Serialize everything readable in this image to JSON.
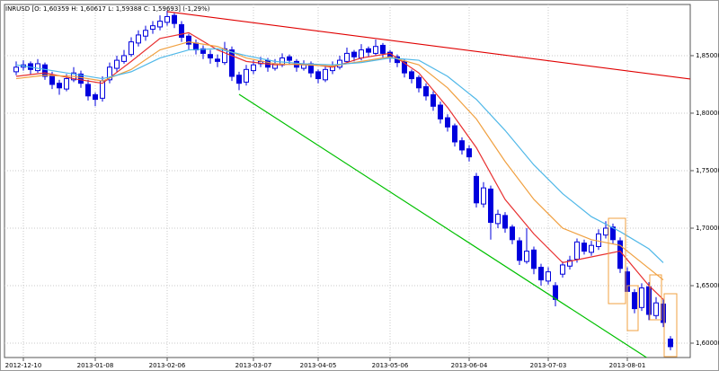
{
  "chart_data": {
    "type": "candlestick",
    "title": "INRUSD [O: 1,60359  H: 1,60617  L: 1,59388  C: 1,59693] (-1,29%)",
    "categories": [
      null,
      "2012-12-10",
      null,
      null,
      null,
      null,
      null,
      null,
      null,
      null,
      null,
      "2013-01-08",
      null,
      null,
      null,
      null,
      null,
      null,
      null,
      null,
      null,
      "2013-02-06",
      null,
      null,
      null,
      null,
      null,
      null,
      null,
      null,
      null,
      null,
      null,
      "2013-03-07",
      null,
      null,
      null,
      null,
      null,
      null,
      null,
      null,
      "2013-04-05",
      null,
      null,
      null,
      null,
      null,
      null,
      null,
      null,
      null,
      "2013-05-06",
      null,
      null,
      null,
      null,
      null,
      null,
      null,
      null,
      null,
      null,
      "2013-06-04",
      null,
      null,
      null,
      null,
      null,
      null,
      null,
      null,
      null,
      null,
      "2013-07-03",
      null,
      null,
      null,
      null,
      null,
      null,
      null,
      null,
      null,
      null,
      "2013-08-01",
      null,
      null,
      null,
      null,
      null,
      null
    ],
    "open": [
      1.836,
      1.84,
      1.843,
      1.837,
      1.842,
      1.833,
      1.826,
      1.821,
      1.829,
      1.834,
      1.825,
      1.816,
      1.813,
      1.829,
      1.839,
      1.845,
      1.851,
      1.861,
      1.867,
      1.873,
      1.875,
      1.879,
      1.885,
      1.877,
      1.867,
      1.861,
      1.856,
      1.851,
      1.847,
      1.844,
      1.855,
      1.833,
      1.827,
      1.837,
      1.843,
      1.846,
      1.839,
      1.842,
      1.849,
      1.845,
      1.839,
      1.843,
      1.836,
      1.829,
      1.837,
      1.84,
      1.845,
      1.853,
      1.848,
      1.856,
      1.852,
      1.859,
      1.853,
      1.849,
      1.845,
      1.836,
      1.831,
      1.823,
      1.816,
      1.807,
      1.796,
      1.789,
      1.776,
      1.769,
      1.745,
      1.721,
      1.734,
      1.704,
      1.711,
      1.701,
      1.689,
      1.671,
      1.681,
      1.666,
      1.654,
      1.65,
      1.66,
      1.667,
      1.673,
      1.687,
      1.679,
      1.684,
      1.694,
      1.701,
      1.689,
      1.662,
      1.644,
      1.631,
      1.649,
      1.624,
      1.634,
      1.60359
    ],
    "high": [
      1.845,
      1.846,
      1.845,
      1.847,
      1.844,
      1.836,
      1.829,
      1.834,
      1.84,
      1.837,
      1.829,
      1.818,
      1.832,
      1.844,
      1.85,
      1.855,
      1.866,
      1.872,
      1.876,
      1.88,
      1.885,
      1.889,
      1.887,
      1.88,
      1.869,
      1.864,
      1.859,
      1.855,
      1.851,
      1.862,
      1.858,
      1.836,
      1.842,
      1.846,
      1.849,
      1.848,
      1.847,
      1.852,
      1.851,
      1.847,
      1.846,
      1.845,
      1.838,
      1.842,
      1.845,
      1.85,
      1.857,
      1.855,
      1.86,
      1.858,
      1.864,
      1.861,
      1.855,
      1.851,
      1.847,
      1.838,
      1.833,
      1.826,
      1.819,
      1.81,
      1.799,
      1.791,
      1.779,
      1.772,
      1.748,
      1.74,
      1.737,
      1.716,
      1.714,
      1.703,
      1.692,
      1.7,
      1.684,
      1.669,
      1.666,
      1.653,
      1.671,
      1.676,
      1.691,
      1.69,
      1.689,
      1.699,
      1.706,
      1.704,
      1.692,
      1.666,
      1.647,
      1.652,
      1.653,
      1.64,
      1.638,
      1.60617
    ],
    "low": [
      1.833,
      1.837,
      1.834,
      1.835,
      1.829,
      1.821,
      1.816,
      1.819,
      1.827,
      1.822,
      1.811,
      1.806,
      1.81,
      1.826,
      1.836,
      1.843,
      1.849,
      1.858,
      1.863,
      1.869,
      1.872,
      1.876,
      1.874,
      1.862,
      1.855,
      1.851,
      1.847,
      1.843,
      1.84,
      1.842,
      1.828,
      1.82,
      1.824,
      1.834,
      1.84,
      1.836,
      1.837,
      1.84,
      1.842,
      1.836,
      1.837,
      1.831,
      1.826,
      1.827,
      1.834,
      1.838,
      1.843,
      1.845,
      1.846,
      1.849,
      1.85,
      1.848,
      1.844,
      1.84,
      1.831,
      1.826,
      1.818,
      1.811,
      1.802,
      1.791,
      1.784,
      1.771,
      1.764,
      1.758,
      1.718,
      1.718,
      1.69,
      1.7,
      1.696,
      1.686,
      1.668,
      1.669,
      1.66,
      1.65,
      1.651,
      1.632,
      1.657,
      1.664,
      1.67,
      1.677,
      1.676,
      1.681,
      1.691,
      1.686,
      1.661,
      1.641,
      1.626,
      1.628,
      1.62,
      1.621,
      1.614,
      1.59388
    ],
    "close": [
      1.84,
      1.842,
      1.838,
      1.843,
      1.832,
      1.825,
      1.822,
      1.83,
      1.835,
      1.826,
      1.815,
      1.812,
      1.828,
      1.84,
      1.846,
      1.85,
      1.862,
      1.868,
      1.872,
      1.876,
      1.88,
      1.884,
      1.878,
      1.866,
      1.86,
      1.855,
      1.852,
      1.848,
      1.845,
      1.856,
      1.832,
      1.826,
      1.838,
      1.842,
      1.845,
      1.84,
      1.843,
      1.848,
      1.846,
      1.84,
      1.842,
      1.835,
      1.83,
      1.838,
      1.841,
      1.846,
      1.852,
      1.849,
      1.855,
      1.853,
      1.858,
      1.852,
      1.848,
      1.844,
      1.835,
      1.83,
      1.822,
      1.815,
      1.806,
      1.795,
      1.788,
      1.775,
      1.768,
      1.762,
      1.722,
      1.735,
      1.705,
      1.712,
      1.7,
      1.69,
      1.672,
      1.68,
      1.665,
      1.655,
      1.662,
      1.638,
      1.668,
      1.672,
      1.688,
      1.68,
      1.685,
      1.695,
      1.7,
      1.69,
      1.665,
      1.645,
      1.63,
      1.648,
      1.625,
      1.635,
      1.618,
      1.59693
    ],
    "candle_color": "#0000dd",
    "lines": [
      {
        "color": "#e83030",
        "x": [
          0,
          4,
          8,
          12,
          16,
          20,
          24,
          28,
          32,
          36,
          40,
          44,
          48,
          52,
          56,
          60,
          64,
          68,
          72,
          76,
          80,
          84,
          88,
          90
        ],
        "values": [
          1.832,
          1.835,
          1.83,
          1.826,
          1.845,
          1.865,
          1.87,
          1.855,
          1.845,
          1.842,
          1.843,
          1.84,
          1.848,
          1.852,
          1.835,
          1.805,
          1.77,
          1.725,
          1.695,
          1.67,
          1.675,
          1.68,
          1.65,
          1.638
        ]
      },
      {
        "color": "#f0a040",
        "x": [
          0,
          4,
          8,
          12,
          16,
          20,
          24,
          28,
          32,
          36,
          40,
          44,
          48,
          52,
          56,
          60,
          64,
          68,
          72,
          76,
          80,
          84,
          88,
          90
        ],
        "values": [
          1.83,
          1.833,
          1.832,
          1.828,
          1.838,
          1.855,
          1.862,
          1.858,
          1.848,
          1.843,
          1.842,
          1.841,
          1.845,
          1.849,
          1.842,
          1.822,
          1.795,
          1.758,
          1.725,
          1.7,
          1.69,
          1.685,
          1.665,
          1.655
        ]
      },
      {
        "color": "#50b8e8",
        "x": [
          0,
          4,
          8,
          12,
          16,
          20,
          24,
          28,
          32,
          36,
          40,
          44,
          48,
          52,
          56,
          60,
          64,
          68,
          72,
          76,
          80,
          84,
          88,
          90
        ],
        "values": [
          1.842,
          1.838,
          1.834,
          1.83,
          1.836,
          1.848,
          1.855,
          1.856,
          1.85,
          1.845,
          1.843,
          1.842,
          1.844,
          1.848,
          1.846,
          1.832,
          1.812,
          1.785,
          1.755,
          1.73,
          1.71,
          1.697,
          1.682,
          1.67
        ]
      },
      {
        "color": "#e00000",
        "x": [
          21,
          93.75
        ],
        "values": [
          1.8883,
          1.8297
        ]
      },
      {
        "color": "#00c000",
        "x": [
          31,
          90
        ],
        "values": [
          1.8164,
          1.5781
        ]
      }
    ],
    "xlim": [
      -1.625,
      93.75
    ],
    "ylim": [
      1.5875,
      1.8945
    ],
    "yticks": [
      {
        "value": 1.6,
        "label": "1,60000"
      },
      {
        "value": 1.65,
        "label": "1,65000"
      },
      {
        "value": 1.7,
        "label": "1,70000"
      },
      {
        "value": 1.75,
        "label": "1,75000"
      },
      {
        "value": 1.8,
        "label": "1,80000"
      },
      {
        "value": 1.85,
        "label": "1,85000"
      }
    ],
    "grid": true
  }
}
